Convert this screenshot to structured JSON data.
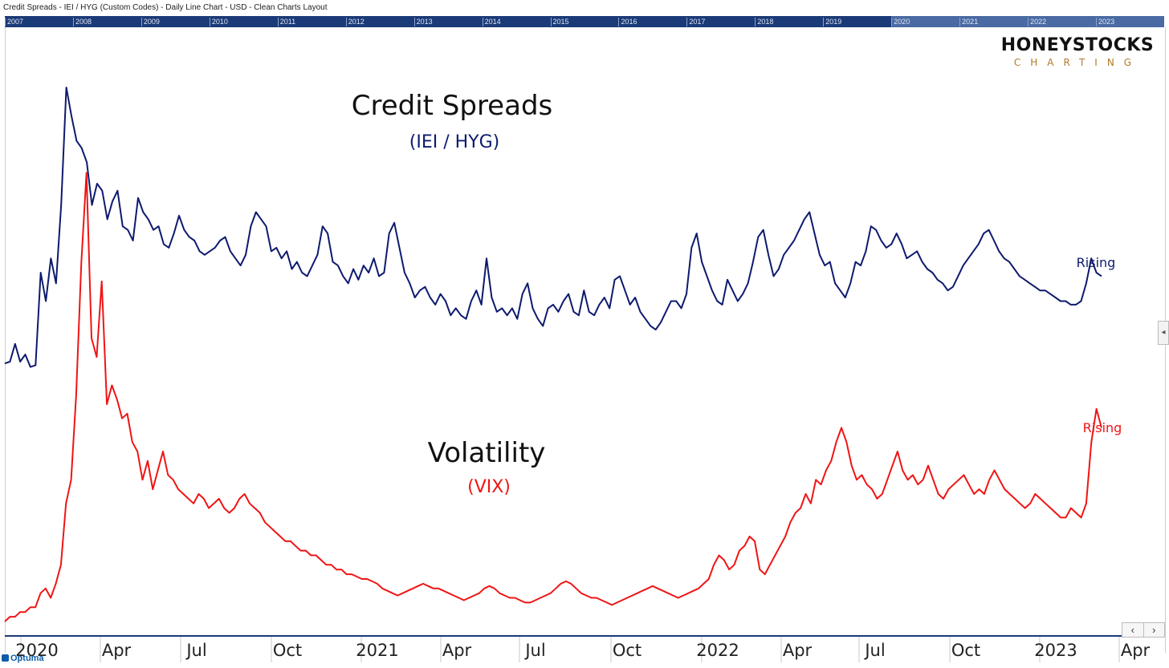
{
  "header": {
    "title": "Credit Spreads - IEI / HYG (Custom Codes) - Daily Line Chart - USD - Clean Charts Layout"
  },
  "navigator": {
    "years": [
      "2007",
      "2008",
      "2009",
      "2010",
      "2011",
      "2012",
      "2013",
      "2014",
      "2015",
      "2016",
      "2017",
      "2018",
      "2019",
      "2020",
      "2021",
      "2022",
      "2023"
    ]
  },
  "logo": {
    "line1": "HONEYSTOCKS",
    "line2": "CHARTING"
  },
  "footer": {
    "brand": "Optuma",
    "prev_icon": "‹",
    "next_icon": "›"
  },
  "colors": {
    "credit": "#0d1a6e",
    "vix": "#f01414",
    "navigator": "#1b3a78"
  },
  "chart_data": {
    "type": "line",
    "x_ticks": [
      "2020",
      "Apr",
      "Jul",
      "Oct",
      "2021",
      "Apr",
      "Jul",
      "Oct",
      "2022",
      "Apr",
      "Jul",
      "Oct",
      "2023",
      "Apr"
    ],
    "series": [
      {
        "name": "Credit Spreads",
        "subtitle": "(IEI / HYG)",
        "end_label": "Rising",
        "values": [
          0.155,
          0.16,
          0.21,
          0.16,
          0.18,
          0.145,
          0.15,
          0.41,
          0.33,
          0.45,
          0.38,
          0.6,
          0.93,
          0.85,
          0.78,
          0.76,
          0.72,
          0.6,
          0.66,
          0.64,
          0.56,
          0.61,
          0.64,
          0.54,
          0.53,
          0.5,
          0.62,
          0.58,
          0.56,
          0.53,
          0.54,
          0.49,
          0.48,
          0.52,
          0.57,
          0.53,
          0.51,
          0.5,
          0.47,
          0.46,
          0.47,
          0.48,
          0.5,
          0.51,
          0.47,
          0.45,
          0.43,
          0.46,
          0.54,
          0.58,
          0.56,
          0.54,
          0.47,
          0.48,
          0.45,
          0.47,
          0.42,
          0.44,
          0.41,
          0.4,
          0.43,
          0.46,
          0.54,
          0.52,
          0.44,
          0.43,
          0.4,
          0.38,
          0.42,
          0.39,
          0.43,
          0.41,
          0.45,
          0.4,
          0.41,
          0.52,
          0.55,
          0.48,
          0.41,
          0.38,
          0.34,
          0.36,
          0.37,
          0.34,
          0.32,
          0.35,
          0.33,
          0.29,
          0.31,
          0.29,
          0.28,
          0.33,
          0.36,
          0.32,
          0.45,
          0.34,
          0.3,
          0.31,
          0.29,
          0.31,
          0.28,
          0.35,
          0.38,
          0.31,
          0.28,
          0.26,
          0.31,
          0.32,
          0.3,
          0.33,
          0.35,
          0.3,
          0.29,
          0.36,
          0.3,
          0.29,
          0.32,
          0.34,
          0.31,
          0.39,
          0.4,
          0.36,
          0.32,
          0.34,
          0.3,
          0.28,
          0.26,
          0.25,
          0.27,
          0.3,
          0.33,
          0.33,
          0.31,
          0.35,
          0.48,
          0.52,
          0.44,
          0.4,
          0.36,
          0.33,
          0.32,
          0.39,
          0.36,
          0.33,
          0.35,
          0.38,
          0.44,
          0.51,
          0.53,
          0.46,
          0.4,
          0.42,
          0.46,
          0.48,
          0.5,
          0.53,
          0.56,
          0.58,
          0.52,
          0.46,
          0.43,
          0.44,
          0.38,
          0.36,
          0.34,
          0.38,
          0.44,
          0.43,
          0.47,
          0.54,
          0.53,
          0.5,
          0.48,
          0.49,
          0.52,
          0.49,
          0.45,
          0.46,
          0.47,
          0.44,
          0.42,
          0.41,
          0.39,
          0.38,
          0.36,
          0.37,
          0.4,
          0.43,
          0.45,
          0.47,
          0.49,
          0.52,
          0.53,
          0.5,
          0.47,
          0.45,
          0.44,
          0.42,
          0.4,
          0.39,
          0.38,
          0.37,
          0.36,
          0.36,
          0.35,
          0.34,
          0.33,
          0.33,
          0.32,
          0.32,
          0.33,
          0.38,
          0.45,
          0.41,
          0.4
        ]
      },
      {
        "name": "Volatility",
        "subtitle": "(VIX)",
        "end_label": "Rising",
        "values": [
          0.0,
          0.01,
          0.01,
          0.02,
          0.02,
          0.03,
          0.03,
          0.06,
          0.07,
          0.05,
          0.08,
          0.12,
          0.25,
          0.3,
          0.48,
          0.76,
          0.95,
          0.6,
          0.56,
          0.72,
          0.46,
          0.5,
          0.47,
          0.43,
          0.44,
          0.38,
          0.36,
          0.3,
          0.34,
          0.28,
          0.32,
          0.36,
          0.31,
          0.3,
          0.28,
          0.27,
          0.26,
          0.25,
          0.27,
          0.26,
          0.24,
          0.25,
          0.26,
          0.24,
          0.23,
          0.24,
          0.26,
          0.27,
          0.25,
          0.24,
          0.23,
          0.21,
          0.2,
          0.19,
          0.18,
          0.17,
          0.17,
          0.16,
          0.15,
          0.15,
          0.14,
          0.14,
          0.13,
          0.12,
          0.12,
          0.11,
          0.11,
          0.1,
          0.1,
          0.095,
          0.09,
          0.09,
          0.085,
          0.08,
          0.07,
          0.065,
          0.06,
          0.055,
          0.06,
          0.065,
          0.07,
          0.075,
          0.08,
          0.075,
          0.07,
          0.07,
          0.065,
          0.06,
          0.055,
          0.05,
          0.045,
          0.05,
          0.055,
          0.06,
          0.07,
          0.075,
          0.07,
          0.06,
          0.055,
          0.05,
          0.05,
          0.045,
          0.04,
          0.04,
          0.045,
          0.05,
          0.055,
          0.06,
          0.07,
          0.08,
          0.085,
          0.08,
          0.07,
          0.06,
          0.055,
          0.05,
          0.05,
          0.045,
          0.04,
          0.035,
          0.04,
          0.045,
          0.05,
          0.055,
          0.06,
          0.065,
          0.07,
          0.075,
          0.07,
          0.065,
          0.06,
          0.055,
          0.05,
          0.055,
          0.06,
          0.065,
          0.07,
          0.08,
          0.09,
          0.12,
          0.14,
          0.13,
          0.11,
          0.12,
          0.15,
          0.16,
          0.18,
          0.17,
          0.11,
          0.1,
          0.12,
          0.14,
          0.16,
          0.18,
          0.21,
          0.23,
          0.24,
          0.27,
          0.25,
          0.3,
          0.29,
          0.32,
          0.34,
          0.38,
          0.41,
          0.38,
          0.33,
          0.3,
          0.31,
          0.29,
          0.28,
          0.26,
          0.27,
          0.3,
          0.33,
          0.36,
          0.32,
          0.3,
          0.31,
          0.29,
          0.3,
          0.33,
          0.3,
          0.27,
          0.26,
          0.28,
          0.29,
          0.3,
          0.31,
          0.29,
          0.27,
          0.28,
          0.27,
          0.3,
          0.32,
          0.3,
          0.28,
          0.27,
          0.26,
          0.25,
          0.24,
          0.25,
          0.27,
          0.26,
          0.25,
          0.24,
          0.23,
          0.22,
          0.22,
          0.24,
          0.23,
          0.22,
          0.25,
          0.38,
          0.45,
          0.41
        ]
      }
    ]
  }
}
